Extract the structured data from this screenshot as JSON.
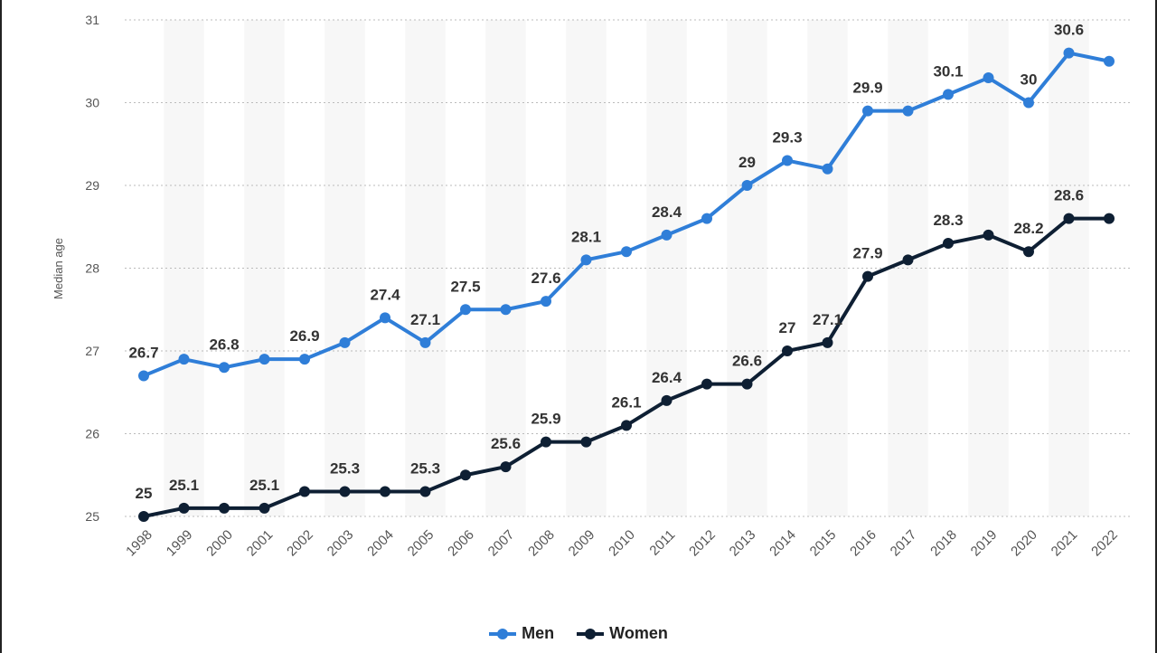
{
  "chart_data": {
    "type": "line",
    "ylabel": "Median age",
    "xlabel": "",
    "ylim": [
      25,
      31
    ],
    "yticks": [
      "25",
      "26",
      "27",
      "28",
      "29",
      "30",
      "31"
    ],
    "grid": "horizontal dotted",
    "legend_position": "bottom",
    "categories": [
      "1998",
      "1999",
      "2000",
      "2001",
      "2002",
      "2003",
      "2004",
      "2005",
      "2006",
      "2007",
      "2008",
      "2009",
      "2010",
      "2011",
      "2012",
      "2013",
      "2014",
      "2015",
      "2016",
      "2017",
      "2018",
      "2019",
      "2020",
      "2021",
      "2022"
    ],
    "series": [
      {
        "name": "Men",
        "color": "#2f7ed8",
        "values": [
          26.7,
          26.9,
          26.8,
          26.9,
          26.9,
          27.1,
          27.4,
          27.1,
          27.5,
          27.5,
          27.6,
          28.1,
          28.2,
          28.4,
          28.6,
          29,
          29.3,
          29.2,
          29.9,
          29.9,
          30.1,
          30.3,
          30,
          30.6,
          30.5
        ],
        "data_labels": [
          "26.7",
          "",
          "26.8",
          "",
          "26.9",
          "",
          "27.4",
          "27.1",
          "27.5",
          "",
          "27.6",
          "28.1",
          "",
          "28.4",
          "",
          "29",
          "29.3",
          "",
          "29.9",
          "",
          "30.1",
          "",
          "30",
          "30.6",
          ""
        ]
      },
      {
        "name": "Women",
        "color": "#0e1f33",
        "values": [
          25,
          25.1,
          25.1,
          25.1,
          25.3,
          25.3,
          25.3,
          25.3,
          25.5,
          25.6,
          25.9,
          25.9,
          26.1,
          26.4,
          26.6,
          26.6,
          27,
          27.1,
          27.9,
          28.1,
          28.3,
          28.4,
          28.2,
          28.6,
          28.6
        ],
        "data_labels": [
          "25",
          "25.1",
          "",
          "25.1",
          "",
          "25.3",
          "",
          "25.3",
          "",
          "25.6",
          "25.9",
          "",
          "26.1",
          "26.4",
          "",
          "26.6",
          "27",
          "27.1",
          "27.9",
          "",
          "28.3",
          "",
          "28.2",
          "28.6",
          ""
        ]
      }
    ]
  }
}
